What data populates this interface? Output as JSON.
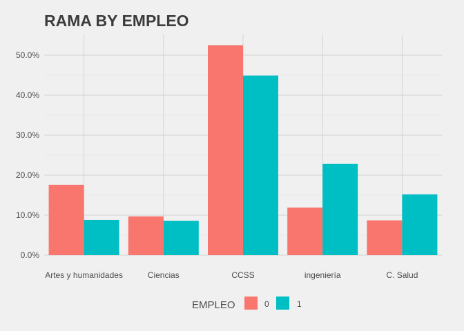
{
  "chart_data": {
    "type": "bar",
    "title": "RAMA BY EMPLEO",
    "xlabel": "",
    "ylabel": "",
    "categories": [
      "Artes y humanidades",
      "Ciencias",
      "CCSS",
      "ingeniería",
      "C. Salud"
    ],
    "series": [
      {
        "name": "0",
        "color": "#F8766D",
        "values": [
          17.6,
          9.7,
          52.5,
          11.9,
          8.7
        ]
      },
      {
        "name": "1",
        "color": "#00BFC4",
        "values": [
          8.8,
          8.6,
          44.9,
          22.8,
          15.2
        ]
      }
    ],
    "ylim": [
      0,
      55
    ],
    "yticks": [
      0,
      10,
      20,
      30,
      40,
      50
    ],
    "ytick_labels": [
      "0.0%",
      "10.0%",
      "20.0%",
      "30.0%",
      "40.0%",
      "50.0%"
    ],
    "grid": true,
    "legend": {
      "title": "EMPLEO",
      "position": "bottom"
    }
  }
}
